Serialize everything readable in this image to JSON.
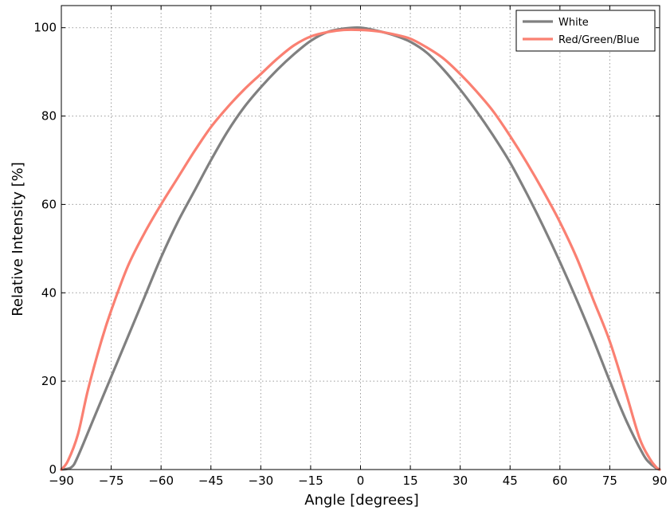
{
  "chart_data": {
    "type": "line",
    "title": "",
    "xlabel": "Angle [degrees]",
    "ylabel": "Relative Intensity [%]",
    "xlim": [
      -90,
      90
    ],
    "ylim": [
      0,
      105
    ],
    "x_ticks": [
      -90,
      -75,
      -60,
      -45,
      -30,
      -15,
      0,
      15,
      30,
      45,
      60,
      75,
      90
    ],
    "x_tick_labels": [
      "−90",
      "−75",
      "−60",
      "−45",
      "−30",
      "−15",
      "0",
      "15",
      "30",
      "45",
      "60",
      "75",
      "90"
    ],
    "y_ticks": [
      0,
      20,
      40,
      60,
      80,
      100
    ],
    "y_tick_labels": [
      "0",
      "20",
      "40",
      "60",
      "80",
      "100"
    ],
    "grid": true,
    "legend": {
      "position": "top-right"
    },
    "series": [
      {
        "name": "White",
        "color": "#808080",
        "x": [
          -90,
          -87,
          -85,
          -80,
          -75,
          -70,
          -65,
          -60,
          -55,
          -50,
          -45,
          -40,
          -35,
          -30,
          -25,
          -20,
          -15,
          -10,
          -5,
          0,
          5,
          10,
          15,
          20,
          25,
          30,
          35,
          40,
          45,
          50,
          55,
          60,
          65,
          70,
          75,
          80,
          85,
          87,
          89,
          90
        ],
        "y": [
          0,
          0.5,
          3,
          12,
          21,
          30,
          39,
          48,
          56,
          63,
          70,
          76.5,
          82,
          86.5,
          90.5,
          94,
          97,
          99,
          99.8,
          100,
          99.3,
          98.3,
          96.8,
          94.3,
          90.5,
          86,
          81,
          75.5,
          69.5,
          62.5,
          55,
          47,
          38.5,
          29.5,
          20,
          11,
          3.5,
          1.5,
          0.3,
          0
        ]
      },
      {
        "name": "Red/Green/Blue",
        "color": "#fa8072",
        "x": [
          -90,
          -88,
          -85,
          -82,
          -78,
          -75,
          -70,
          -65,
          -60,
          -55,
          -50,
          -45,
          -40,
          -35,
          -30,
          -25,
          -20,
          -15,
          -10,
          -5,
          0,
          5,
          10,
          15,
          20,
          25,
          30,
          35,
          40,
          45,
          50,
          55,
          60,
          65,
          70,
          75,
          80,
          84,
          87,
          89,
          90
        ],
        "y": [
          0,
          2,
          8,
          18,
          29,
          36,
          46,
          53.5,
          60,
          66,
          72,
          77.5,
          82,
          86,
          89.5,
          93,
          96,
          98,
          99,
          99.5,
          99.5,
          99.2,
          98.5,
          97.5,
          95.5,
          93,
          89.5,
          85.5,
          81,
          75.5,
          69.5,
          63,
          56,
          48,
          38.5,
          29,
          17,
          7,
          2.5,
          0.5,
          0
        ]
      }
    ]
  }
}
